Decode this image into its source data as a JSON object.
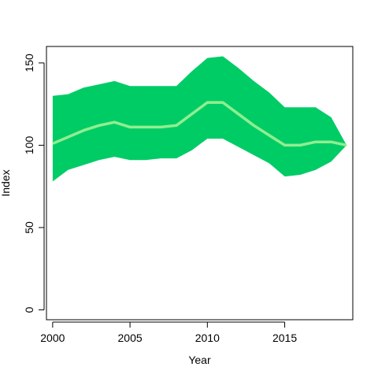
{
  "chart_data": {
    "type": "area",
    "title": "",
    "xlabel": "Year",
    "ylabel": "Index",
    "xlim": [
      1999.6,
      2019.4
    ],
    "ylim": [
      -6,
      160
    ],
    "x_ticks": [
      2000,
      2005,
      2010,
      2015
    ],
    "y_ticks": [
      0,
      50,
      100,
      150
    ],
    "grid": false,
    "colors": {
      "band": "#00cc66",
      "line": "#90ee90"
    },
    "x": [
      2000,
      2001,
      2002,
      2003,
      2004,
      2005,
      2006,
      2007,
      2008,
      2009,
      2010,
      2011,
      2012,
      2013,
      2014,
      2015,
      2016,
      2017,
      2018,
      2019
    ],
    "series": [
      {
        "role": "upper",
        "values": [
          130,
          131,
          135,
          137,
          139,
          136,
          136,
          136,
          136,
          145,
          153,
          154,
          147,
          139,
          132,
          123,
          123,
          123,
          117,
          100
        ]
      },
      {
        "role": "central",
        "values": [
          101,
          105,
          109,
          112,
          114,
          111,
          111,
          111,
          112,
          119,
          126,
          126,
          119,
          112,
          106,
          100,
          100,
          102,
          102,
          100
        ]
      },
      {
        "role": "lower",
        "values": [
          78,
          85,
          88,
          91,
          93,
          91,
          91,
          92,
          92,
          97,
          104,
          104,
          99,
          94,
          89,
          81,
          82,
          85,
          90,
          100
        ]
      }
    ]
  }
}
